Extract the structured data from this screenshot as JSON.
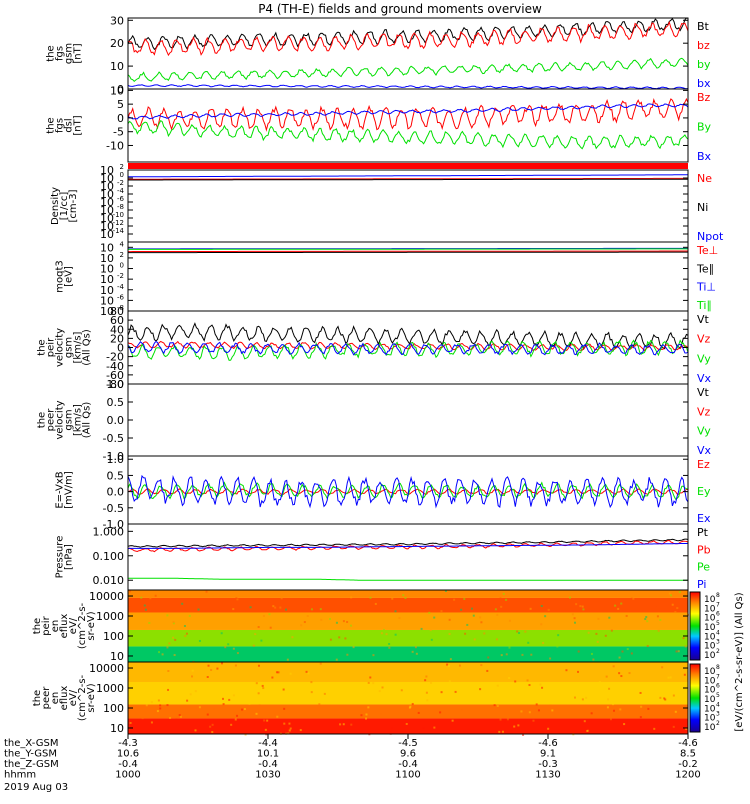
{
  "title": "P4 (TH-E) fields and ground moments overview",
  "colors": {
    "black": "#000000",
    "red": "#ff0000",
    "green": "#00e000",
    "blue": "#0000ff"
  },
  "chart_data": [
    {
      "id": "fgs-gsm",
      "type": "line",
      "ylabel": [
        "the",
        "fgs",
        "gsm",
        "[nT]"
      ],
      "ylim": [
        0,
        31
      ],
      "yticks": [
        "30",
        "20",
        "10",
        "0"
      ],
      "ytick_values": [
        30,
        20,
        10,
        0
      ],
      "legend": [
        "Bt",
        "bz",
        "by",
        "bx"
      ],
      "x": [
        0,
        10,
        20,
        30,
        40,
        50,
        60,
        70,
        80,
        90,
        100,
        110,
        120
      ],
      "series": [
        {
          "name": "Bt",
          "color": "black",
          "osc": 3,
          "values": [
            20,
            20.5,
            21,
            21.5,
            22,
            22.5,
            23,
            23.5,
            24.5,
            25.5,
            26.5,
            27.5,
            28.5
          ]
        },
        {
          "name": "bz",
          "color": "red",
          "osc": 3.5,
          "values": [
            18,
            18.5,
            19,
            19.5,
            20,
            20.5,
            21,
            21.5,
            22.5,
            23.5,
            24.5,
            25.5,
            26
          ]
        },
        {
          "name": "by",
          "color": "green",
          "osc": 2,
          "values": [
            5,
            5.5,
            6,
            6.5,
            7,
            7.5,
            8,
            8.5,
            9,
            9.5,
            10,
            11,
            11.5
          ]
        },
        {
          "name": "bx",
          "color": "blue",
          "osc": 0.4,
          "values": [
            1.5,
            1.5,
            1.4,
            1.3,
            1.2,
            1.1,
            1,
            0.9,
            0.8,
            0.7,
            0.6,
            0.5,
            0.4
          ]
        }
      ]
    },
    {
      "id": "fgs-dsl",
      "type": "line",
      "ylabel": [
        "the",
        "fgs",
        "dsl",
        "[nT]"
      ],
      "ylim": [
        -16,
        10.5
      ],
      "yticks": [
        "10",
        "5",
        "0",
        "-5",
        "-10"
      ],
      "ytick_values": [
        10,
        5,
        0,
        -5,
        -10
      ],
      "legend": [
        "Bz",
        "By",
        "Bx"
      ],
      "x": [
        0,
        10,
        20,
        30,
        40,
        50,
        60,
        70,
        80,
        90,
        100,
        110,
        120
      ],
      "series": [
        {
          "name": "Bz",
          "color": "red",
          "osc": 4,
          "values": [
            0,
            0,
            0,
            0,
            0,
            0,
            0,
            0,
            1,
            1.5,
            2,
            3,
            3.5
          ]
        },
        {
          "name": "By",
          "color": "green",
          "osc": 2.5,
          "values": [
            -3,
            -4,
            -5,
            -5.5,
            -6,
            -6.5,
            -7,
            -7.5,
            -8,
            -8.5,
            -9,
            -8.5,
            -8
          ]
        },
        {
          "name": "Bx",
          "color": "blue",
          "osc": 0.6,
          "values": [
            0,
            0.5,
            1,
            1.2,
            1.5,
            2,
            2.2,
            2.5,
            3,
            3.5,
            4,
            4.5,
            4.5
          ]
        }
      ]
    },
    {
      "id": "density",
      "type": "line",
      "ylabel": [
        "Density",
        "[1/cc]",
        "[cm-3]"
      ],
      "ylim": [
        -16,
        2
      ],
      "log": true,
      "yticks": [
        "10^2",
        "10^0",
        "10^-2",
        "10^-4",
        "10^-6",
        "10^-8",
        "10^-10",
        "10^-12",
        "10^-14"
      ],
      "ytick_values": [
        2,
        0,
        -2,
        -4,
        -6,
        -8,
        -10,
        -12,
        -14
      ],
      "legend": [
        "Ne",
        "Ni",
        "Npot"
      ],
      "x": [
        0,
        120
      ],
      "series": [
        {
          "name": "Ne",
          "color": "red",
          "osc": 0,
          "values": [
            -0.3,
            -0.1
          ]
        },
        {
          "name": "Ni",
          "color": "black",
          "osc": 0,
          "values": [
            -0.5,
            -0.3
          ]
        },
        {
          "name": "Npot",
          "color": "blue",
          "osc": 0,
          "values": [
            0.3,
            0.8
          ]
        }
      ]
    },
    {
      "id": "temperature",
      "type": "line",
      "ylabel": [
        "moqt3",
        "[eV]"
      ],
      "ylim": [
        -8,
        5
      ],
      "log": true,
      "yticks": [
        "10^4",
        "10^2",
        "10^0",
        "10^-2",
        "10^-4",
        "10^-6",
        "10^-8"
      ],
      "ytick_values": [
        4,
        2,
        0,
        -2,
        -4,
        -6,
        -8
      ],
      "legend": [
        "Te⊥",
        "Te∥",
        "Ti⊥",
        "Ti∥"
      ],
      "x": [
        0,
        120
      ],
      "series": [
        {
          "name": "Te⊥",
          "color": "red",
          "osc": 0,
          "values": [
            3.2,
            3.3
          ]
        },
        {
          "name": "Te∥",
          "color": "black",
          "osc": 0,
          "values": [
            3,
            3.1
          ]
        },
        {
          "name": "Ti⊥",
          "color": "blue",
          "osc": 0,
          "values": [
            3.7,
            3.8
          ]
        },
        {
          "name": "Ti∥",
          "color": "green",
          "osc": 0,
          "values": [
            3.6,
            3.7
          ]
        }
      ]
    },
    {
      "id": "peir-velocity",
      "type": "line",
      "ylabel": [
        "the",
        "peir",
        "velocity",
        "gsm",
        "[km/s]",
        "(All Qs)"
      ],
      "ylim": [
        -80,
        80
      ],
      "yticks": [
        "80",
        "60",
        "40",
        "20",
        "0",
        "-20",
        "-40",
        "-60",
        "-80"
      ],
      "ytick_values": [
        80,
        60,
        40,
        20,
        0,
        -20,
        -40,
        -60,
        -80
      ],
      "legend": [
        "Vt",
        "Vz",
        "Vy",
        "Vx"
      ],
      "x": [
        0,
        10,
        20,
        30,
        40,
        50,
        60,
        70,
        80,
        90,
        100,
        110,
        120
      ],
      "series": [
        {
          "name": "Vt",
          "color": "black",
          "osc": 18,
          "values": [
            30,
            35,
            33,
            30,
            28,
            27,
            25,
            22,
            20,
            18,
            15,
            14,
            13
          ]
        },
        {
          "name": "Vz",
          "color": "red",
          "osc": 7,
          "values": [
            5,
            6,
            5,
            4,
            4,
            3,
            2,
            2,
            1,
            0,
            0,
            0,
            0
          ]
        },
        {
          "name": "Vy",
          "color": "green",
          "osc": 16,
          "values": [
            -8,
            -10,
            -12,
            -10,
            -8,
            -6,
            -5,
            -4,
            -3,
            -2,
            -2,
            0,
            0
          ]
        },
        {
          "name": "Vx",
          "color": "blue",
          "osc": 12,
          "values": [
            2,
            0,
            -2,
            -3,
            -2,
            -4,
            -3,
            -2,
            -3,
            -4,
            -3,
            -5,
            -4
          ]
        }
      ]
    },
    {
      "id": "peer-velocity",
      "type": "line",
      "ylabel": [
        "the",
        "peer",
        "velocity",
        "gsm",
        "[km/s]",
        "(All Qs)"
      ],
      "ylim": [
        -1,
        1
      ],
      "yticks": [
        "1.0",
        "0.5",
        "0.0",
        "-0.5",
        "-1.0"
      ],
      "ytick_values": [
        1,
        0.5,
        0,
        -0.5,
        -1
      ],
      "legend": [
        "Vt",
        "Vz",
        "Vy",
        "Vx"
      ],
      "x": [],
      "series": []
    },
    {
      "id": "efield",
      "type": "line",
      "ylabel": [
        "E=-VxB",
        "[mV/m]"
      ],
      "ylim": [
        -1,
        1.1
      ],
      "yticks": [
        "1.0",
        "0.5",
        "0.0",
        "-0.5",
        "-1.0"
      ],
      "ytick_values": [
        1,
        0.5,
        0,
        -0.5,
        -1
      ],
      "legend": [
        "Ez",
        "Ey",
        "Ex"
      ],
      "x": [
        0,
        10,
        20,
        30,
        40,
        50,
        60,
        70,
        80,
        90,
        100,
        110,
        120
      ],
      "series": [
        {
          "name": "Ez",
          "color": "red",
          "osc": 0.08,
          "values": [
            0,
            0,
            0,
            0,
            0,
            0,
            0,
            0,
            0,
            0,
            0,
            0,
            0
          ]
        },
        {
          "name": "Ey",
          "color": "green",
          "osc": 0.22,
          "values": [
            0,
            0,
            0.05,
            0.05,
            0,
            0,
            0.05,
            0,
            0,
            0.05,
            0,
            0,
            0
          ]
        },
        {
          "name": "Ex",
          "color": "blue",
          "osc": 0.45,
          "values": [
            0.1,
            0.05,
            0,
            -0.05,
            0,
            0,
            0,
            0,
            0,
            0,
            0,
            0,
            0
          ]
        }
      ]
    },
    {
      "id": "pressure",
      "type": "line",
      "ylabel": [
        "Pressure",
        "[nPa]"
      ],
      "ylim": [
        -2.4,
        0.3
      ],
      "log": true,
      "yticks": [
        "1.000",
        "0.100",
        "0.010"
      ],
      "ytick_values": [
        0,
        -1,
        -2
      ],
      "legend": [
        "Pt",
        "Pb",
        "Pe",
        "Pi"
      ],
      "x": [
        0,
        10,
        20,
        30,
        40,
        50,
        60,
        70,
        80,
        90,
        100,
        110,
        120
      ],
      "series": [
        {
          "name": "Pt",
          "color": "black",
          "osc": 0.02,
          "values": [
            0.24,
            0.25,
            0.26,
            0.27,
            0.28,
            0.29,
            0.3,
            0.32,
            0.34,
            0.36,
            0.39,
            0.42,
            0.45
          ]
        },
        {
          "name": "Pb",
          "color": "red",
          "osc": 0.05,
          "values": [
            0.17,
            0.18,
            0.19,
            0.2,
            0.21,
            0.22,
            0.23,
            0.24,
            0.26,
            0.28,
            0.31,
            0.34,
            0.36
          ]
        },
        {
          "name": "Pe",
          "color": "green",
          "osc": 0,
          "values": [
            0.012,
            0.012,
            0.011,
            0.011,
            0.011,
            0.01,
            0.01,
            0.01,
            0.01,
            0.01,
            0.01,
            0.01,
            0.01
          ]
        },
        {
          "name": "Pi",
          "color": "blue",
          "osc": 0,
          "values": [
            0.2,
            0.2,
            0.21,
            0.22,
            0.22,
            0.23,
            0.24,
            0.25,
            0.26,
            0.27,
            0.28,
            0.3,
            0.32
          ]
        }
      ]
    },
    {
      "id": "peir-eflux",
      "type": "heatmap",
      "ylabel": [
        "the",
        "peir",
        "en",
        "eflux",
        "eV/",
        "(cm^2-s-",
        "sr-eV)"
      ],
      "ylim": [
        5,
        20000
      ],
      "log": true,
      "yticks": [
        "10000",
        "1000",
        "100",
        "10"
      ],
      "ytick_values": [
        10000,
        1000,
        100,
        10
      ],
      "bands": [
        {
          "from": 5,
          "to": 30,
          "color": "#00c864"
        },
        {
          "from": 30,
          "to": 200,
          "color": "#8ce000"
        },
        {
          "from": 200,
          "to": 1500,
          "color": "#ffa000"
        },
        {
          "from": 1500,
          "to": 8000,
          "color": "#ff5000"
        },
        {
          "from": 8000,
          "to": 20000,
          "color": "#ff8800"
        }
      ]
    },
    {
      "id": "peer-eflux",
      "type": "heatmap",
      "ylabel": [
        "the",
        "peer",
        "en",
        "eflux",
        "eV/",
        "(cm^2-s-",
        "sr-eV)"
      ],
      "ylim": [
        5,
        20000
      ],
      "log": true,
      "yticks": [
        "10000",
        "1000",
        "100",
        "10"
      ],
      "ytick_values": [
        10000,
        1000,
        100,
        10
      ],
      "bands": [
        {
          "from": 5,
          "to": 30,
          "color": "#ff1a00"
        },
        {
          "from": 30,
          "to": 150,
          "color": "#ff7000"
        },
        {
          "from": 150,
          "to": 2000,
          "color": "#ffd000"
        },
        {
          "from": 2000,
          "to": 20000,
          "color": "#ffb800"
        }
      ]
    }
  ],
  "colorbar": {
    "label": "[eV/(cm^2-s-sr-eV)] (All Qs)",
    "top": {
      "ticks": [
        "10^8",
        "10^7",
        "10^6",
        "10^5",
        "10^4",
        "10^3",
        "10^2"
      ]
    },
    "bottom": {
      "ticks": [
        "10^8",
        "10^7",
        "10^6",
        "10^5",
        "10^4",
        "10^3",
        "10^2"
      ]
    }
  },
  "xaxis": {
    "rows": [
      {
        "label": "the_X-GSM",
        "values": [
          "-4.3",
          "-4.4",
          "-4.5",
          "-4.6",
          "-4.6"
        ]
      },
      {
        "label": "the_Y-GSM",
        "values": [
          "10.6",
          "10.1",
          "9.6",
          "9.1",
          "8.5"
        ]
      },
      {
        "label": "the_Z-GSM",
        "values": [
          "-0.4",
          "-0.4",
          "-0.4",
          "-0.3",
          "-0.2"
        ]
      },
      {
        "label": "hhmm",
        "values": [
          "1000",
          "1030",
          "1100",
          "1130",
          "1200"
        ]
      }
    ],
    "date": "2019 Aug 03"
  }
}
